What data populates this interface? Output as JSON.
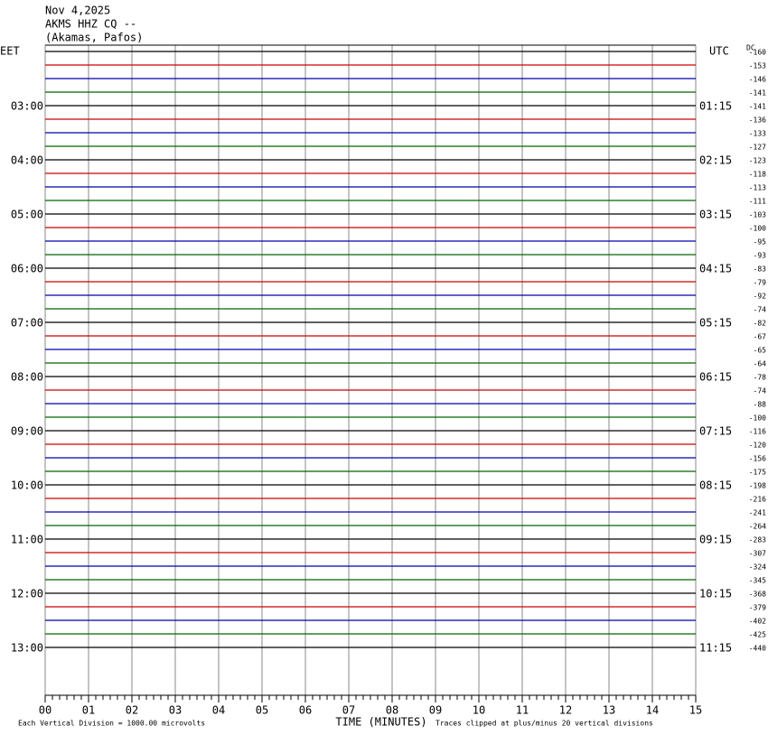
{
  "chart_data": {
    "type": "helicorder",
    "title": "Nov 4,2025",
    "subtitle": "AKMS HHZ CQ --",
    "location": "(Akamas, Pafos)",
    "left_axis_label": "EET",
    "right_axis_label": "UTC",
    "dc_label": "DC",
    "x_label": "TIME (MINUTES)",
    "scale_note": "Each Vertical Division = 1000.00 microvolts",
    "clip_note": "Traces clipped at plus/minus 20 vertical divisions",
    "trace_colors": [
      "#000000",
      "#cc0000",
      "#0000aa",
      "#006600"
    ],
    "left_times": [
      "03:00",
      "04:00",
      "05:00",
      "06:00",
      "07:00",
      "08:00",
      "09:00",
      "10:00",
      "11:00",
      "12:00",
      "13:00"
    ],
    "right_times": [
      "01:15",
      "02:15",
      "03:15",
      "04:15",
      "05:15",
      "06:15",
      "07:15",
      "08:15",
      "09:15",
      "10:15",
      "11:15"
    ],
    "dc_offsets": [
      -160,
      -153,
      -146,
      -141,
      -141,
      -136,
      -133,
      -127,
      -123,
      -118,
      -113,
      -111,
      -103,
      -100,
      -95,
      -93,
      -83,
      -79,
      -92,
      -74,
      -82,
      -67,
      -65,
      -64,
      -78,
      -74,
      -88,
      -100,
      -116,
      -120,
      -156,
      -175,
      -198,
      -216,
      -241,
      -264,
      -283,
      -307,
      -324,
      -345,
      -368,
      -379,
      -402,
      -425,
      -440
    ],
    "xlim": [
      0,
      15
    ],
    "xticks": [
      {
        "value": 0,
        "label": "00"
      },
      {
        "value": 1,
        "label": "01"
      },
      {
        "value": 2,
        "label": "02"
      },
      {
        "value": 3,
        "label": "03"
      },
      {
        "value": 4,
        "label": "04"
      },
      {
        "value": 5,
        "label": "05"
      },
      {
        "value": 6,
        "label": "06"
      },
      {
        "value": 7,
        "label": "07"
      },
      {
        "value": 8,
        "label": "08"
      },
      {
        "value": 9,
        "label": "09"
      },
      {
        "value": 10,
        "label": "10"
      },
      {
        "value": 11,
        "label": "11"
      },
      {
        "value": 12,
        "label": "12"
      },
      {
        "value": 13,
        "label": "13"
      },
      {
        "value": 14,
        "label": "14"
      },
      {
        "value": 15,
        "label": "15"
      }
    ],
    "grid": true
  }
}
